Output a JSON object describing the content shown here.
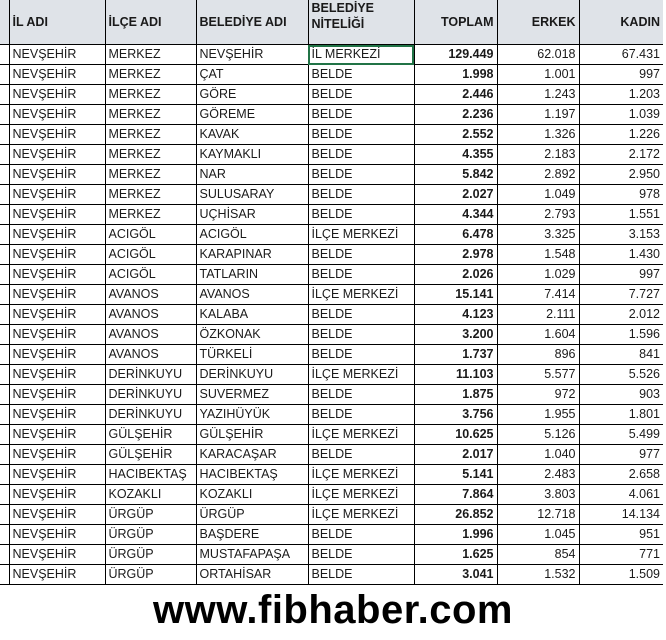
{
  "headers": [
    "İL ADI",
    "İLÇE ADI",
    "BELEDİYE ADI",
    "BELEDİYE NİTELİĞİ",
    "TOPLAM",
    "ERKEK",
    "KADIN"
  ],
  "selected_cell": "İL MERKEZİ",
  "accent_color": "#217346",
  "rows": [
    [
      "NEVŞEHİR",
      "MERKEZ",
      "NEVŞEHİR",
      "İL MERKEZİ",
      "129.449",
      "62.018",
      "67.431"
    ],
    [
      "NEVŞEHİR",
      "MERKEZ",
      "ÇAT",
      "BELDE",
      "1.998",
      "1.001",
      "997"
    ],
    [
      "NEVŞEHİR",
      "MERKEZ",
      "GÖRE",
      "BELDE",
      "2.446",
      "1.243",
      "1.203"
    ],
    [
      "NEVŞEHİR",
      "MERKEZ",
      "GÖREME",
      "BELDE",
      "2.236",
      "1.197",
      "1.039"
    ],
    [
      "NEVŞEHİR",
      "MERKEZ",
      "KAVAK",
      "BELDE",
      "2.552",
      "1.326",
      "1.226"
    ],
    [
      "NEVŞEHİR",
      "MERKEZ",
      "KAYMAKLI",
      "BELDE",
      "4.355",
      "2.183",
      "2.172"
    ],
    [
      "NEVŞEHİR",
      "MERKEZ",
      "NAR",
      "BELDE",
      "5.842",
      "2.892",
      "2.950"
    ],
    [
      "NEVŞEHİR",
      "MERKEZ",
      "SULUSARAY",
      "BELDE",
      "2.027",
      "1.049",
      "978"
    ],
    [
      "NEVŞEHİR",
      "MERKEZ",
      "UÇHİSAR",
      "BELDE",
      "4.344",
      "2.793",
      "1.551"
    ],
    [
      "NEVŞEHİR",
      "ACIGÖL",
      "ACIGÖL",
      "İLÇE MERKEZİ",
      "6.478",
      "3.325",
      "3.153"
    ],
    [
      "NEVŞEHİR",
      "ACIGÖL",
      "KARAPINAR",
      "BELDE",
      "2.978",
      "1.548",
      "1.430"
    ],
    [
      "NEVŞEHİR",
      "ACIGÖL",
      "TATLARIN",
      "BELDE",
      "2.026",
      "1.029",
      "997"
    ],
    [
      "NEVŞEHİR",
      "AVANOS",
      "AVANOS",
      "İLÇE MERKEZİ",
      "15.141",
      "7.414",
      "7.727"
    ],
    [
      "NEVŞEHİR",
      "AVANOS",
      "KALABA",
      "BELDE",
      "4.123",
      "2.111",
      "2.012"
    ],
    [
      "NEVŞEHİR",
      "AVANOS",
      "ÖZKONAK",
      "BELDE",
      "3.200",
      "1.604",
      "1.596"
    ],
    [
      "NEVŞEHİR",
      "AVANOS",
      "TÜRKELİ",
      "BELDE",
      "1.737",
      "896",
      "841"
    ],
    [
      "NEVŞEHİR",
      "DERİNKUYU",
      "DERİNKUYU",
      "İLÇE MERKEZİ",
      "11.103",
      "5.577",
      "5.526"
    ],
    [
      "NEVŞEHİR",
      "DERİNKUYU",
      "SUVERMEZ",
      "BELDE",
      "1.875",
      "972",
      "903"
    ],
    [
      "NEVŞEHİR",
      "DERİNKUYU",
      "YAZIHÜYÜK",
      "BELDE",
      "3.756",
      "1.955",
      "1.801"
    ],
    [
      "NEVŞEHİR",
      "GÜLŞEHİR",
      "GÜLŞEHİR",
      "İLÇE MERKEZİ",
      "10.625",
      "5.126",
      "5.499"
    ],
    [
      "NEVŞEHİR",
      "GÜLŞEHİR",
      "KARACAŞAR",
      "BELDE",
      "2.017",
      "1.040",
      "977"
    ],
    [
      "NEVŞEHİR",
      "HACIBEKTAŞ",
      "HACIBEKTAŞ",
      "İLÇE MERKEZİ",
      "5.141",
      "2.483",
      "2.658"
    ],
    [
      "NEVŞEHİR",
      "KOZAKLI",
      "KOZAKLI",
      "İLÇE MERKEZİ",
      "7.864",
      "3.803",
      "4.061"
    ],
    [
      "NEVŞEHİR",
      "ÜRGÜP",
      "ÜRGÜP",
      "İLÇE MERKEZİ",
      "26.852",
      "12.718",
      "14.134"
    ],
    [
      "NEVŞEHİR",
      "ÜRGÜP",
      "BAŞDERE",
      "BELDE",
      "1.996",
      "1.045",
      "951"
    ],
    [
      "NEVŞEHİR",
      "ÜRGÜP",
      "MUSTAFAPAŞA",
      "BELDE",
      "1.625",
      "854",
      "771"
    ],
    [
      "NEVŞEHİR",
      "ÜRGÜP",
      "ORTAHİSAR",
      "BELDE",
      "3.041",
      "1.532",
      "1.509"
    ]
  ],
  "footer": "www.fibhaber.com"
}
